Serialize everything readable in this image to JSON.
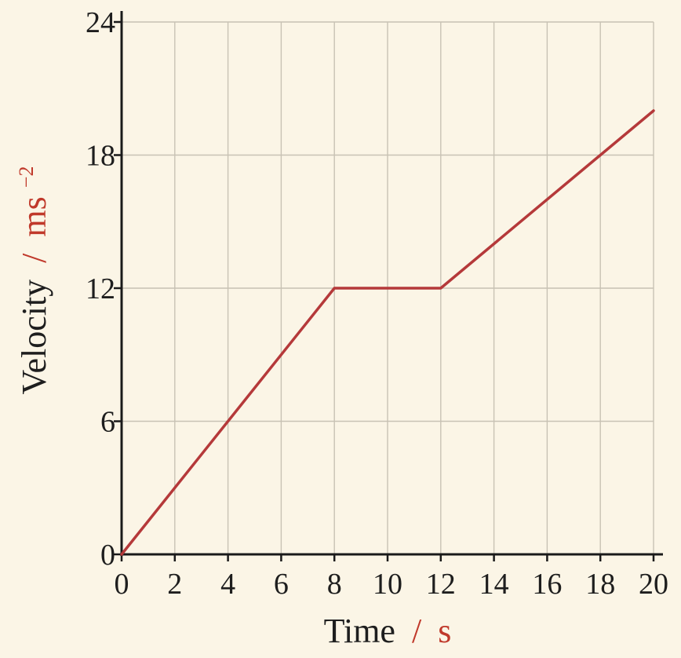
{
  "chart_data": {
    "type": "line",
    "title": "",
    "xlabel": "Time",
    "xunit": "s",
    "ylabel": "Velocity",
    "yunit": "ms",
    "yunit_exponent": "−2",
    "unit_separator": "/",
    "xlim": [
      0,
      20
    ],
    "ylim": [
      0,
      24
    ],
    "xticks": [
      "0",
      "2",
      "4",
      "6",
      "8",
      "10",
      "12",
      "14",
      "16",
      "18",
      "20"
    ],
    "yticks": [
      "0",
      "6",
      "12",
      "18",
      "24"
    ],
    "grid": true,
    "series": [
      {
        "x": [
          0,
          8,
          12,
          20
        ],
        "y": [
          0,
          12,
          12,
          20
        ]
      }
    ],
    "colors": {
      "line": "#b5393a",
      "unit_text": "#c0392b",
      "axis": "#1a1a1a",
      "grid": "#c8c2b4",
      "background": "#fbf5e6"
    }
  }
}
